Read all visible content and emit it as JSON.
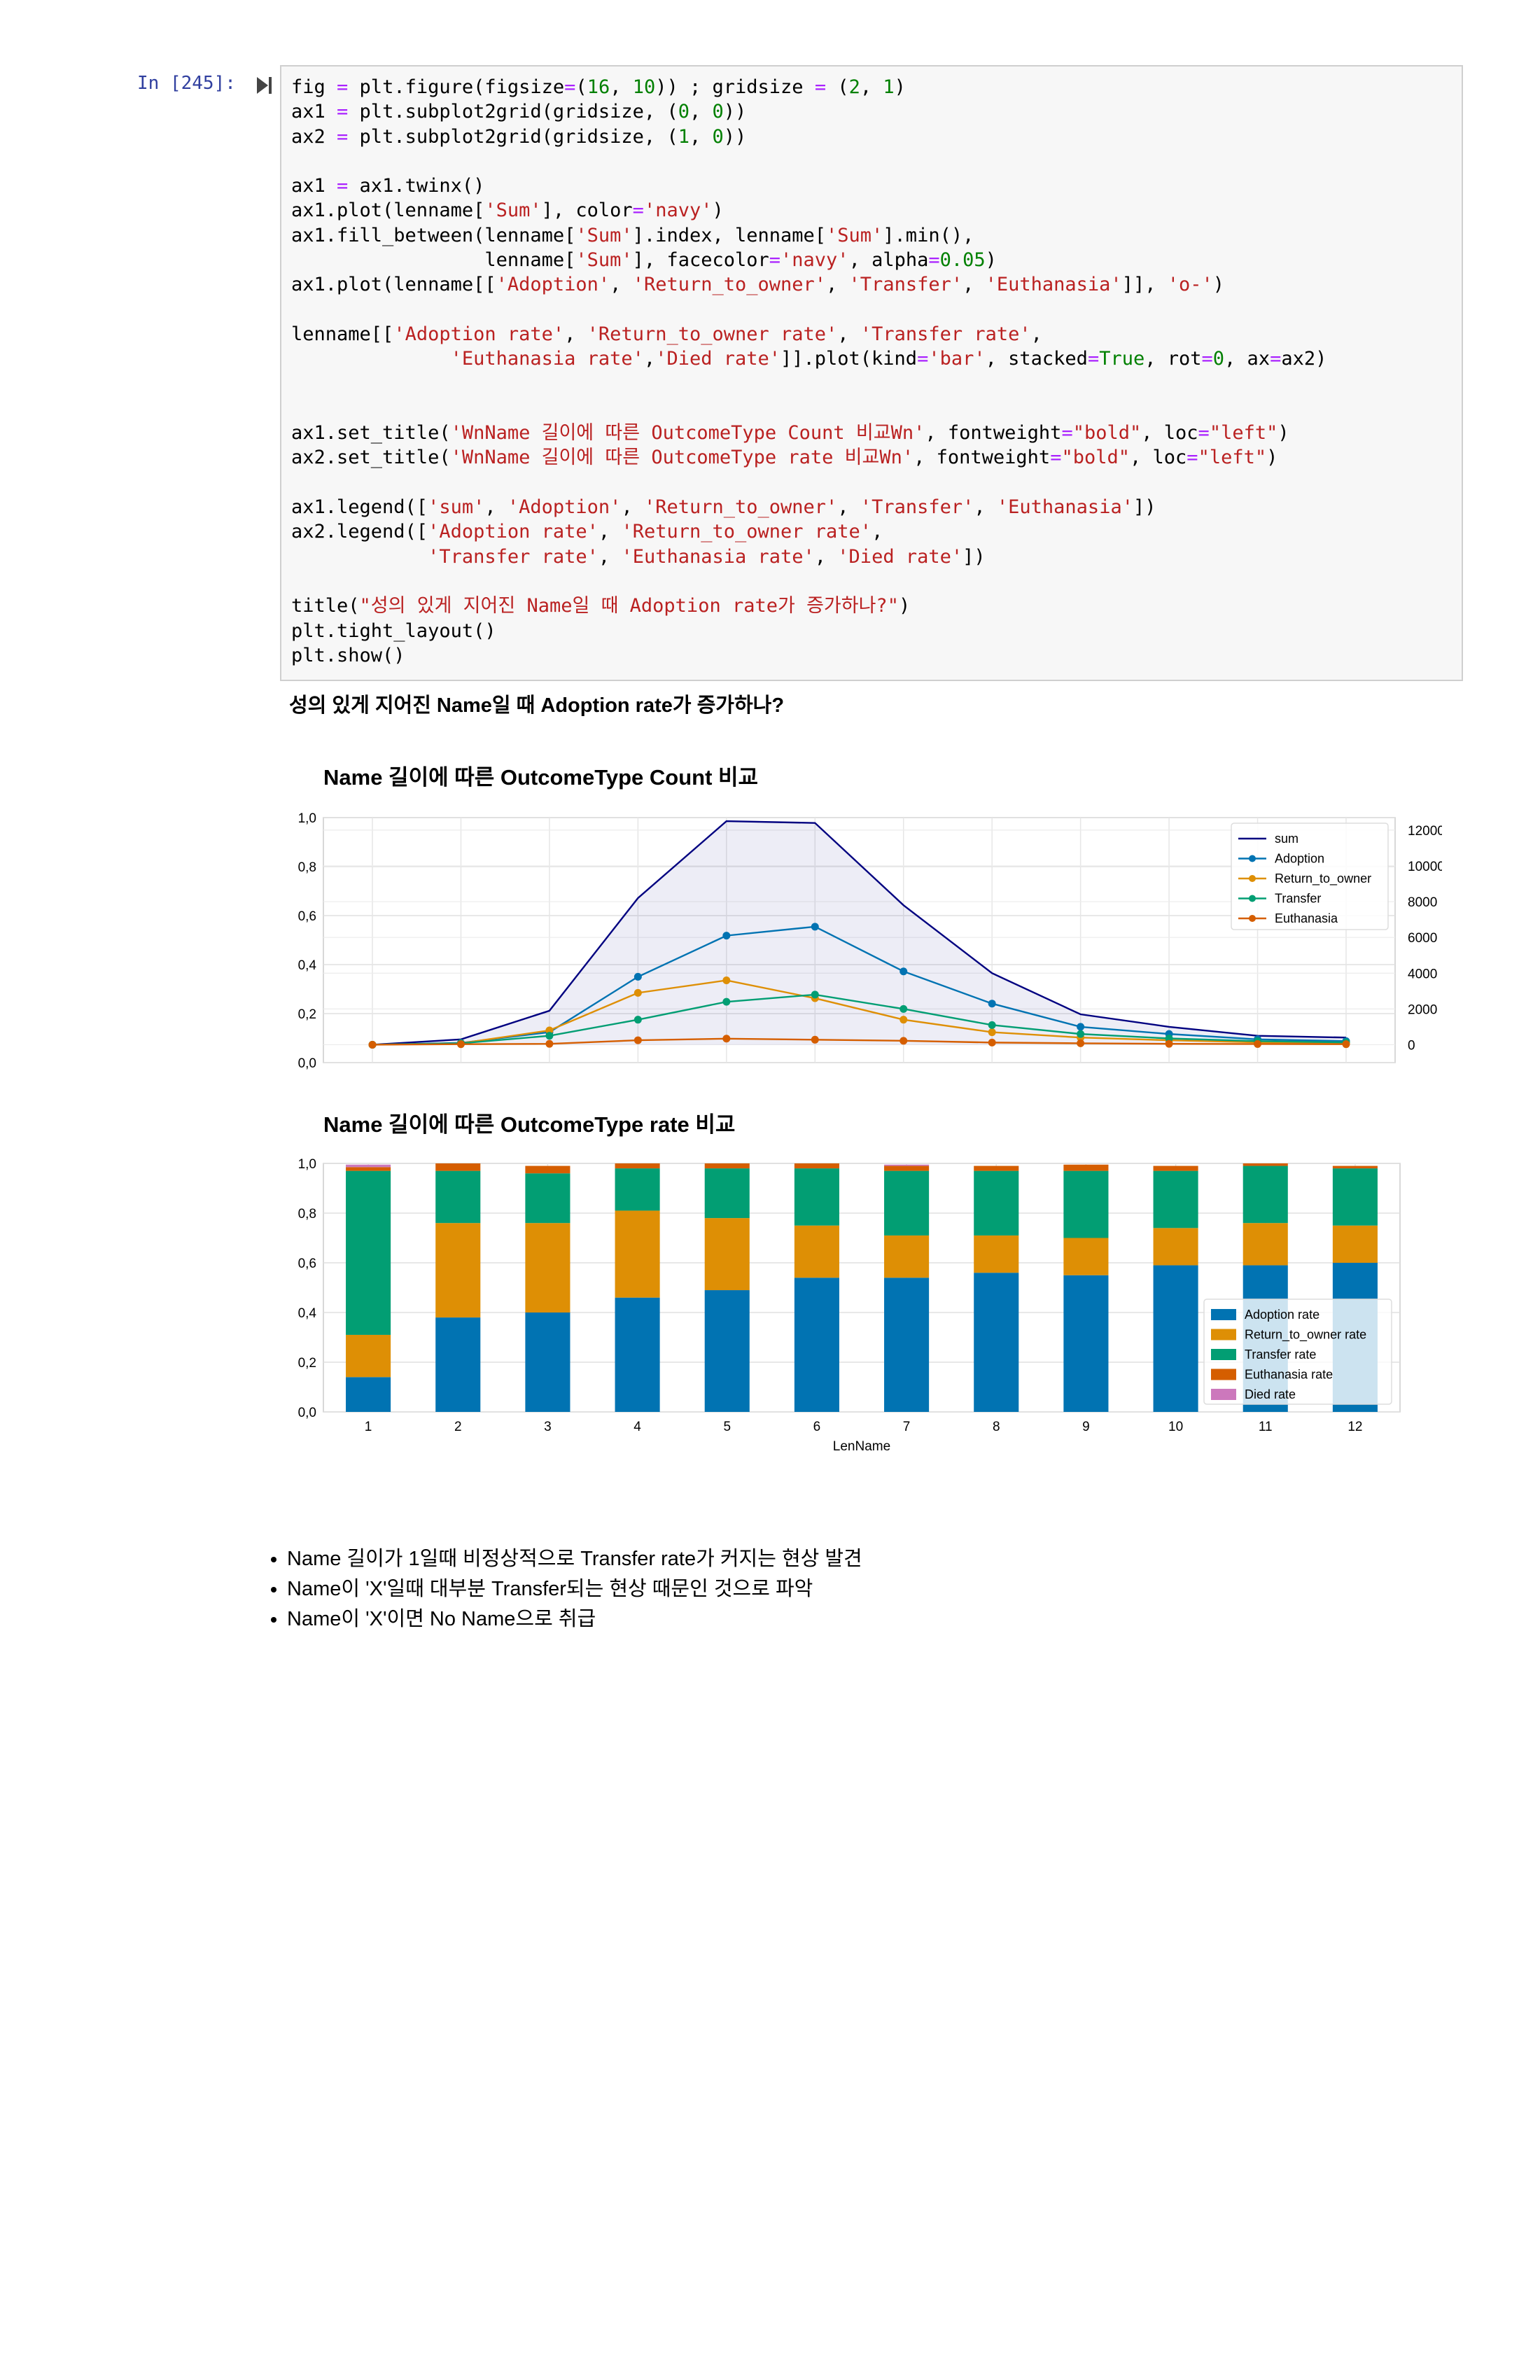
{
  "cell": {
    "prompt": "In [245]:",
    "code_lines": [
      [
        [
          "t",
          "fig "
        ],
        [
          "o",
          "="
        ],
        [
          "t",
          " plt.figure(figsize"
        ],
        [
          "o",
          "="
        ],
        [
          "t",
          "("
        ],
        [
          "n",
          "16"
        ],
        [
          "t",
          ", "
        ],
        [
          "n",
          "10"
        ],
        [
          "t",
          ")) ; gridsize "
        ],
        [
          "o",
          "="
        ],
        [
          "t",
          " ("
        ],
        [
          "n",
          "2"
        ],
        [
          "t",
          ", "
        ],
        [
          "n",
          "1"
        ],
        [
          "t",
          ")"
        ]
      ],
      [
        [
          "t",
          "ax1 "
        ],
        [
          "o",
          "="
        ],
        [
          "t",
          " plt.subplot2grid(gridsize, ("
        ],
        [
          "n",
          "0"
        ],
        [
          "t",
          ", "
        ],
        [
          "n",
          "0"
        ],
        [
          "t",
          "))"
        ]
      ],
      [
        [
          "t",
          "ax2 "
        ],
        [
          "o",
          "="
        ],
        [
          "t",
          " plt.subplot2grid(gridsize, ("
        ],
        [
          "n",
          "1"
        ],
        [
          "t",
          ", "
        ],
        [
          "n",
          "0"
        ],
        [
          "t",
          "))"
        ]
      ],
      [
        [
          "t",
          ""
        ]
      ],
      [
        [
          "t",
          "ax1 "
        ],
        [
          "o",
          "="
        ],
        [
          "t",
          " ax1.twinx()"
        ]
      ],
      [
        [
          "t",
          "ax1.plot(lenname["
        ],
        [
          "s",
          "'Sum'"
        ],
        [
          "t",
          "], color"
        ],
        [
          "o",
          "="
        ],
        [
          "s",
          "'navy'"
        ],
        [
          "t",
          ")"
        ]
      ],
      [
        [
          "t",
          "ax1.fill_between(lenname["
        ],
        [
          "s",
          "'Sum'"
        ],
        [
          "t",
          "].index, lenname["
        ],
        [
          "s",
          "'Sum'"
        ],
        [
          "t",
          "].min(),"
        ]
      ],
      [
        [
          "t",
          "                 lenname["
        ],
        [
          "s",
          "'Sum'"
        ],
        [
          "t",
          "], facecolor"
        ],
        [
          "o",
          "="
        ],
        [
          "s",
          "'navy'"
        ],
        [
          "t",
          ", alpha"
        ],
        [
          "o",
          "="
        ],
        [
          "n",
          "0.05"
        ],
        [
          "t",
          ")"
        ]
      ],
      [
        [
          "t",
          "ax1.plot(lenname[["
        ],
        [
          "s",
          "'Adoption'"
        ],
        [
          "t",
          ", "
        ],
        [
          "s",
          "'Return_to_owner'"
        ],
        [
          "t",
          ", "
        ],
        [
          "s",
          "'Transfer'"
        ],
        [
          "t",
          ", "
        ],
        [
          "s",
          "'Euthanasia'"
        ],
        [
          "t",
          "]], "
        ],
        [
          "s",
          "'o-'"
        ],
        [
          "t",
          ")"
        ]
      ],
      [
        [
          "t",
          ""
        ]
      ],
      [
        [
          "t",
          "lenname[["
        ],
        [
          "s",
          "'Adoption rate'"
        ],
        [
          "t",
          ", "
        ],
        [
          "s",
          "'Return_to_owner rate'"
        ],
        [
          "t",
          ", "
        ],
        [
          "s",
          "'Transfer rate'"
        ],
        [
          "t",
          ","
        ]
      ],
      [
        [
          "t",
          "              "
        ],
        [
          "s",
          "'Euthanasia rate'"
        ],
        [
          "t",
          ","
        ],
        [
          "s",
          "'Died rate'"
        ],
        [
          "t",
          "]].plot(kind"
        ],
        [
          "o",
          "="
        ],
        [
          "s",
          "'bar'"
        ],
        [
          "t",
          ", stacked"
        ],
        [
          "o",
          "="
        ],
        [
          "n",
          "True"
        ],
        [
          "t",
          ", rot"
        ],
        [
          "o",
          "="
        ],
        [
          "n",
          "0"
        ],
        [
          "t",
          ", ax"
        ],
        [
          "o",
          "="
        ],
        [
          "t",
          "ax2)"
        ]
      ],
      [
        [
          "t",
          ""
        ]
      ],
      [
        [
          "t",
          ""
        ]
      ],
      [
        [
          "t",
          "ax1.set_title("
        ],
        [
          "s",
          "'WnName 길이에 따른 OutcomeType Count 비교Wn'"
        ],
        [
          "t",
          ", fontweight"
        ],
        [
          "o",
          "="
        ],
        [
          "s",
          "\"bold\""
        ],
        [
          "t",
          ", loc"
        ],
        [
          "o",
          "="
        ],
        [
          "s",
          "\"left\""
        ],
        [
          "t",
          ")"
        ]
      ],
      [
        [
          "t",
          "ax2.set_title("
        ],
        [
          "s",
          "'WnName 길이에 따른 OutcomeType rate 비교Wn'"
        ],
        [
          "t",
          ", fontweight"
        ],
        [
          "o",
          "="
        ],
        [
          "s",
          "\"bold\""
        ],
        [
          "t",
          ", loc"
        ],
        [
          "o",
          "="
        ],
        [
          "s",
          "\"left\""
        ],
        [
          "t",
          ")"
        ]
      ],
      [
        [
          "t",
          ""
        ]
      ],
      [
        [
          "t",
          "ax1.legend(["
        ],
        [
          "s",
          "'sum'"
        ],
        [
          "t",
          ", "
        ],
        [
          "s",
          "'Adoption'"
        ],
        [
          "t",
          ", "
        ],
        [
          "s",
          "'Return_to_owner'"
        ],
        [
          "t",
          ", "
        ],
        [
          "s",
          "'Transfer'"
        ],
        [
          "t",
          ", "
        ],
        [
          "s",
          "'Euthanasia'"
        ],
        [
          "t",
          "])"
        ]
      ],
      [
        [
          "t",
          "ax2.legend(["
        ],
        [
          "s",
          "'Adoption rate'"
        ],
        [
          "t",
          ", "
        ],
        [
          "s",
          "'Return_to_owner rate'"
        ],
        [
          "t",
          ","
        ]
      ],
      [
        [
          "t",
          "            "
        ],
        [
          "s",
          "'Transfer rate'"
        ],
        [
          "t",
          ", "
        ],
        [
          "s",
          "'Euthanasia rate'"
        ],
        [
          "t",
          ", "
        ],
        [
          "s",
          "'Died rate'"
        ],
        [
          "t",
          "])"
        ]
      ],
      [
        [
          "t",
          ""
        ]
      ],
      [
        [
          "t",
          "title("
        ],
        [
          "s",
          "\"성의 있게 지어진 Name일 때 Adoption rate가 증가하나?\""
        ],
        [
          "t",
          ")"
        ]
      ],
      [
        [
          "t",
          "plt.tight_layout()"
        ]
      ],
      [
        [
          "t",
          "plt.show()"
        ]
      ]
    ]
  },
  "output_title": "성의 있게 지어진 Name일 때 Adoption rate가 증가하나?",
  "chart_data": [
    {
      "type": "line",
      "title": "Name 길이에 따른 OutcomeType Count 비교",
      "x": [
        1,
        2,
        3,
        4,
        5,
        6,
        7,
        8,
        9,
        10,
        11,
        12
      ],
      "left_ylim": [
        0,
        1.0
      ],
      "left_yticks": [
        "0,0",
        "0,2",
        "0,4",
        "0,6",
        "0,8",
        "1,0"
      ],
      "right_ylim": [
        -1000,
        12700
      ],
      "right_yticks": [
        0,
        2000,
        4000,
        6000,
        8000,
        10000,
        12000
      ],
      "grid": true,
      "legend_position": "top-right",
      "series": [
        {
          "name": "sum",
          "color": "#000080",
          "marker": false,
          "fill": true,
          "values": [
            0,
            300,
            1900,
            8200,
            12500,
            12400,
            7800,
            4000,
            1700,
            1000,
            500,
            400
          ]
        },
        {
          "name": "Adoption",
          "color": "#0173b2",
          "marker": true,
          "values": [
            0,
            100,
            700,
            3800,
            6100,
            6600,
            4100,
            2300,
            1000,
            600,
            300,
            200
          ]
        },
        {
          "name": "Return_to_owner",
          "color": "#de8f05",
          "marker": true,
          "values": [
            0,
            80,
            800,
            2900,
            3600,
            2600,
            1400,
            700,
            400,
            250,
            130,
            100
          ]
        },
        {
          "name": "Transfer",
          "color": "#029e73",
          "marker": true,
          "values": [
            0,
            80,
            500,
            1400,
            2400,
            2800,
            2000,
            1100,
            600,
            350,
            200,
            130
          ]
        },
        {
          "name": "Euthanasia",
          "color": "#d55e00",
          "marker": true,
          "values": [
            0,
            30,
            50,
            250,
            340,
            280,
            220,
            120,
            80,
            50,
            40,
            30
          ]
        }
      ]
    },
    {
      "type": "bar",
      "title": "Name 길이에 따른 OutcomeType rate 비교",
      "stacked": true,
      "xlabel": "LenName",
      "categories": [
        "1",
        "2",
        "3",
        "4",
        "5",
        "6",
        "7",
        "8",
        "9",
        "10",
        "11",
        "12"
      ],
      "ylim": [
        0,
        1.0
      ],
      "yticks": [
        "0,0",
        "0,2",
        "0,4",
        "0,6",
        "0,8",
        "1,0"
      ],
      "grid": true,
      "legend_position": "center-right",
      "series": [
        {
          "name": "Adoption rate",
          "color": "#0173b2",
          "values": [
            0.14,
            0.38,
            0.4,
            0.46,
            0.49,
            0.54,
            0.54,
            0.56,
            0.55,
            0.59,
            0.59,
            0.6
          ]
        },
        {
          "name": "Return_to_owner rate",
          "color": "#de8f05",
          "values": [
            0.17,
            0.38,
            0.36,
            0.35,
            0.29,
            0.21,
            0.17,
            0.15,
            0.15,
            0.15,
            0.17,
            0.15
          ]
        },
        {
          "name": "Transfer rate",
          "color": "#029e73",
          "values": [
            0.66,
            0.21,
            0.2,
            0.17,
            0.2,
            0.23,
            0.26,
            0.26,
            0.27,
            0.23,
            0.23,
            0.23
          ]
        },
        {
          "name": "Euthanasia rate",
          "color": "#d55e00",
          "values": [
            0.015,
            0.03,
            0.03,
            0.02,
            0.02,
            0.02,
            0.02,
            0.02,
            0.025,
            0.02,
            0.01,
            0.01
          ]
        },
        {
          "name": "Died rate",
          "color": "#cc78bc",
          "values": [
            0.01,
            0.0,
            0.0,
            0.0,
            0.0,
            0.0,
            0.005,
            0.0,
            0.0,
            0.0,
            0.0,
            0.0
          ]
        }
      ]
    }
  ],
  "notes": [
    "Name 길이가 1일때 비정상적으로 Transfer rate가 커지는 현상 발견",
    "Name이 'X'일때 대부분 Transfer되는 현상 때문인 것으로 파악",
    "Name이 'X'이면 No Name으로 취급"
  ]
}
